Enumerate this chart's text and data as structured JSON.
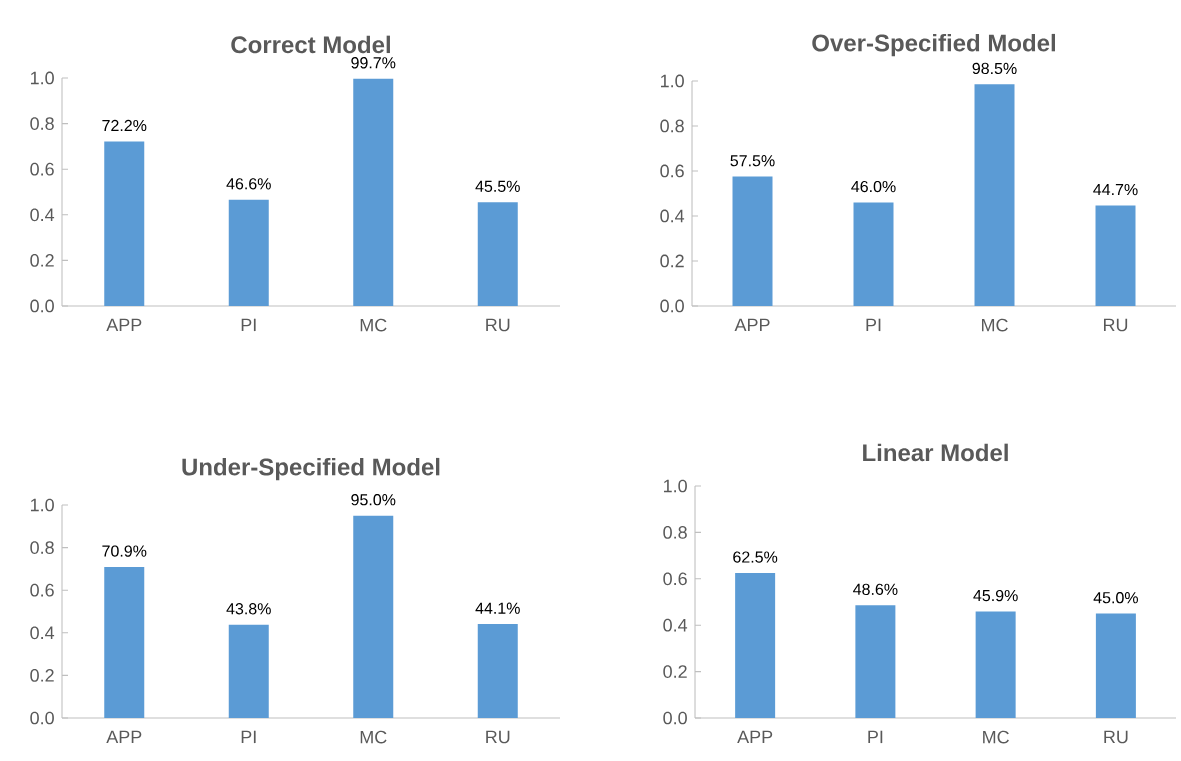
{
  "chart_data": [
    {
      "type": "bar",
      "title": "Correct Model",
      "categories": [
        "APP",
        "PI",
        "MC",
        "RU"
      ],
      "values": [
        0.722,
        0.466,
        0.997,
        0.455
      ],
      "value_labels": [
        "72.2%",
        "46.6%",
        "99.7%",
        "45.5%"
      ],
      "color": "#5b9bd5",
      "ylim": [
        0,
        1
      ],
      "yticks": [
        {
          "value": 0,
          "label": "0.0"
        },
        {
          "value": 0.2,
          "label": "0.2"
        },
        {
          "value": 0.4,
          "label": "0.4"
        },
        {
          "value": 0.6,
          "label": "0.6"
        },
        {
          "value": 0.8,
          "label": "0.8"
        },
        {
          "value": 1,
          "label": "1.0"
        }
      ]
    },
    {
      "type": "bar",
      "title": "Over-Specified Model",
      "categories": [
        "APP",
        "PI",
        "MC",
        "RU"
      ],
      "values": [
        0.575,
        0.46,
        0.985,
        0.447
      ],
      "value_labels": [
        "57.5%",
        "46.0%",
        "98.5%",
        "44.7%"
      ],
      "color": "#5b9bd5",
      "ylim": [
        0,
        1
      ],
      "yticks": [
        {
          "value": 0,
          "label": "0.0"
        },
        {
          "value": 0.2,
          "label": "0.2"
        },
        {
          "value": 0.4,
          "label": "0.4"
        },
        {
          "value": 0.6,
          "label": "0.6"
        },
        {
          "value": 0.8,
          "label": "0.8"
        },
        {
          "value": 1,
          "label": "1.0"
        }
      ]
    },
    {
      "type": "bar",
      "title": "Under-Specified Model",
      "categories": [
        "APP",
        "PI",
        "MC",
        "RU"
      ],
      "values": [
        0.709,
        0.438,
        0.95,
        0.441
      ],
      "value_labels": [
        "70.9%",
        "43.8%",
        "95.0%",
        "44.1%"
      ],
      "color": "#5b9bd5",
      "ylim": [
        0,
        1
      ],
      "yticks": [
        {
          "value": 0,
          "label": "0.0"
        },
        {
          "value": 0.2,
          "label": "0.2"
        },
        {
          "value": 0.4,
          "label": "0.4"
        },
        {
          "value": 0.6,
          "label": "0.6"
        },
        {
          "value": 0.8,
          "label": "0.8"
        },
        {
          "value": 1,
          "label": "1.0"
        }
      ]
    },
    {
      "type": "bar",
      "title": "Linear Model",
      "categories": [
        "APP",
        "PI",
        "MC",
        "RU"
      ],
      "values": [
        0.625,
        0.486,
        0.459,
        0.45
      ],
      "value_labels": [
        "62.5%",
        "48.6%",
        "45.9%",
        "45.0%"
      ],
      "color": "#5b9bd5",
      "ylim": [
        0,
        1
      ],
      "yticks": [
        {
          "value": 0,
          "label": "0.0"
        },
        {
          "value": 0.2,
          "label": "0.2"
        },
        {
          "value": 0.4,
          "label": "0.4"
        },
        {
          "value": 0.6,
          "label": "0.6"
        },
        {
          "value": 0.8,
          "label": "0.8"
        },
        {
          "value": 1,
          "label": "1.0"
        }
      ]
    }
  ]
}
